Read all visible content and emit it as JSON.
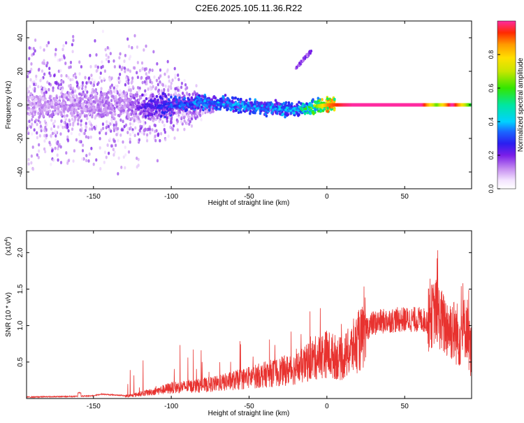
{
  "title": "C2E6.2025.105.11.36.R22",
  "chart_data": [
    {
      "type": "heatmap",
      "xlabel": "Height of straight line (km)",
      "ylabel": "Frequency (Hz)",
      "xlim": [
        -193,
        93
      ],
      "ylim": [
        -50,
        50
      ],
      "x_ticks": [
        -150,
        -100,
        -50,
        0,
        50
      ],
      "y_ticks": [
        -40,
        -20,
        0,
        20,
        40
      ],
      "grid": false,
      "colorbar": {
        "label": "Normalized spectral amplitude",
        "range": [
          0,
          1
        ],
        "ticks": [
          0.0,
          0.2,
          0.4,
          0.6,
          0.8
        ]
      },
      "ridge": {
        "x": [
          -193,
          -170,
          -150,
          -130,
          -110,
          -95,
          -80,
          -65,
          -50,
          -35,
          -20,
          -10,
          0,
          10,
          20,
          40,
          60,
          70,
          80,
          93
        ],
        "freq": [
          0,
          0,
          0,
          0,
          -1,
          0,
          2,
          1,
          -1,
          -2,
          -3,
          -1,
          0,
          0,
          0,
          0,
          0,
          0,
          0,
          0
        ],
        "amplitude": [
          0.12,
          0.14,
          0.14,
          0.15,
          0.25,
          0.32,
          0.35,
          0.35,
          0.35,
          0.35,
          0.4,
          0.55,
          0.85,
          0.95,
          1.0,
          1.0,
          1.0,
          0.6,
          1.0,
          0.5
        ]
      },
      "secondary_feature": {
        "x": [
          -20,
          -10
        ],
        "freq": [
          22,
          32
        ]
      }
    },
    {
      "type": "line",
      "xlabel": "Height of straight line (km)",
      "ylabel": "SNR (10 * v/v)",
      "y_multiplier": "(x10",
      "y_exponent": "4",
      "xlim": [
        -193,
        93
      ],
      "ylim": [
        0,
        2.3
      ],
      "x_ticks": [
        -150,
        -100,
        -50,
        0,
        50
      ],
      "y_ticks": [
        0.5,
        1.0,
        1.5,
        2.0
      ],
      "grid": false,
      "series": [
        {
          "color": "#e8322f",
          "x": [
            -193,
            -160,
            -150,
            -145,
            -130,
            -125,
            -120,
            -110,
            -100,
            -90,
            -80,
            -70,
            -60,
            -50,
            -40,
            -30,
            -20,
            -15,
            -10,
            -5,
            0,
            5,
            10,
            15,
            20,
            25,
            30,
            40,
            50,
            60,
            65,
            70,
            75,
            80,
            85,
            90,
            93
          ],
          "y": [
            0.02,
            0.03,
            0.04,
            0.06,
            0.04,
            0.05,
            0.08,
            0.12,
            0.18,
            0.2,
            0.22,
            0.25,
            0.3,
            0.35,
            0.4,
            0.45,
            0.5,
            0.55,
            0.65,
            0.7,
            0.75,
            0.7,
            0.65,
            0.8,
            0.95,
            1.05,
            1.12,
            1.16,
            1.17,
            1.17,
            1.15,
            1.3,
            1.1,
            1.05,
            0.95,
            1.1,
            0.6
          ]
        }
      ]
    }
  ],
  "colors": {
    "snr_line": "#e8322f",
    "axis": "#000000",
    "background": "#ffffff"
  }
}
